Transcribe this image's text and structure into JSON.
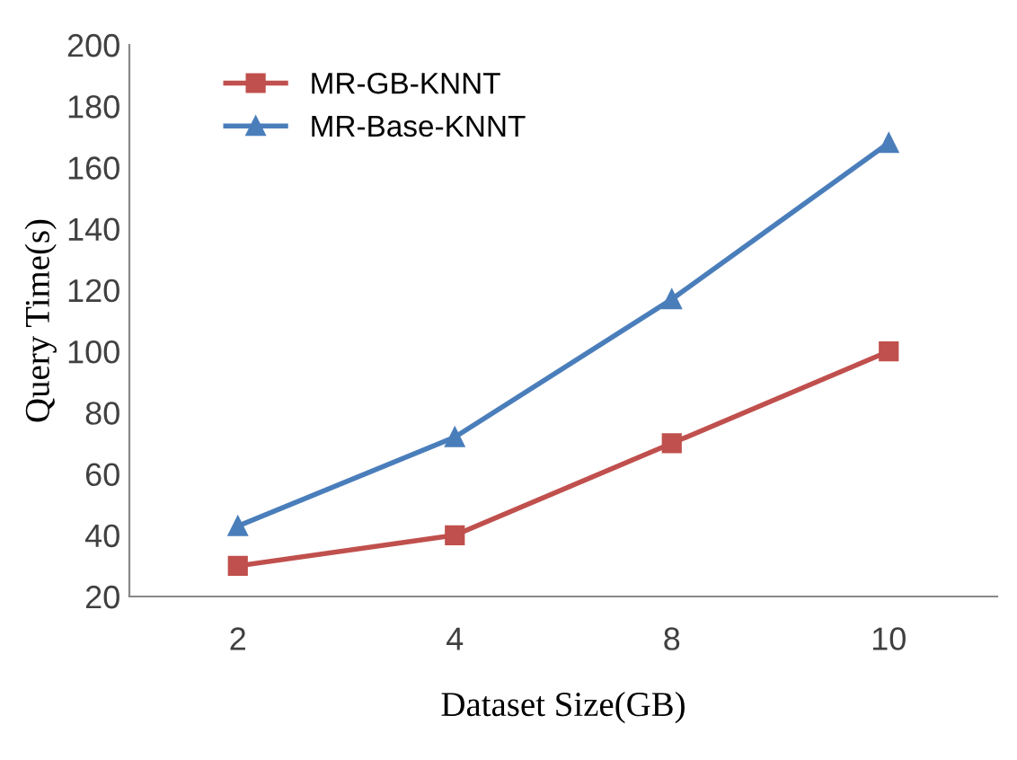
{
  "chart_data": {
    "type": "line",
    "xlabel": "Dataset Size(GB)",
    "ylabel": "Query Time(s)",
    "categories": [
      "2",
      "4",
      "8",
      "10"
    ],
    "series": [
      {
        "name": "MR-GB-KNNT",
        "color": "#c0504d",
        "marker": "square",
        "values": [
          30,
          40,
          70,
          100
        ]
      },
      {
        "name": "MR-Base-KNNT",
        "color": "#4a7ebb",
        "marker": "triangle",
        "values": [
          43,
          72,
          117,
          168
        ]
      }
    ],
    "ylim": [
      20,
      200
    ],
    "yticks": [
      20,
      40,
      60,
      80,
      100,
      120,
      140,
      160,
      180,
      200
    ],
    "grid": false,
    "legend": "top left",
    "line_style": "solid"
  }
}
